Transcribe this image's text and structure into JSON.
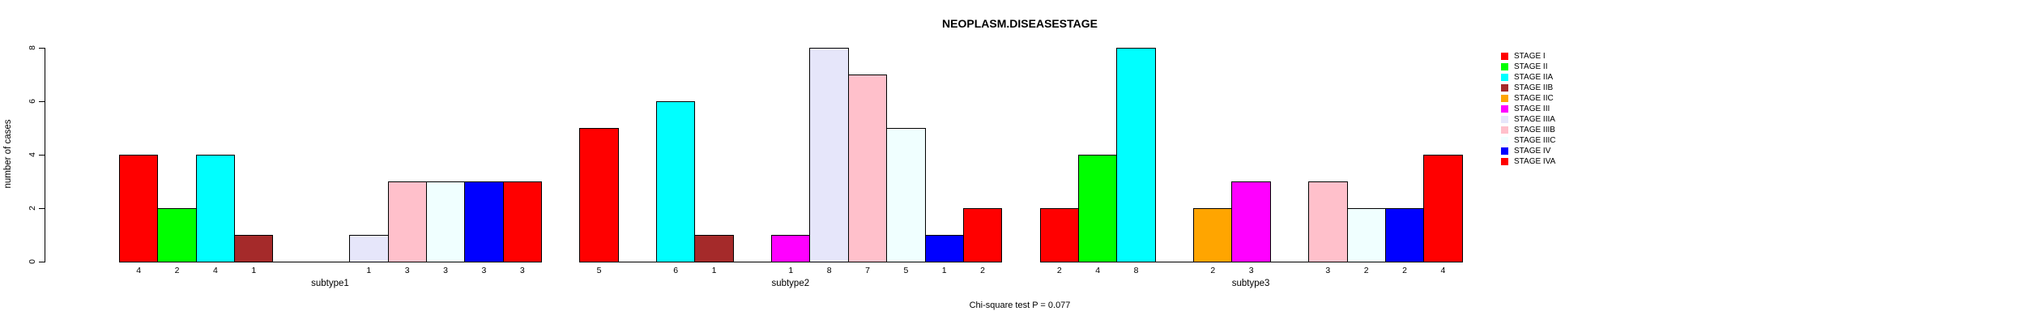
{
  "chart_data": {
    "type": "bar",
    "title": "NEOPLASM.DISEASESTAGE",
    "ylabel": "number of cases",
    "xlabel": "",
    "ylim": [
      0,
      8
    ],
    "yticks": [
      0,
      2,
      4,
      6,
      8
    ],
    "grid": false,
    "legend_position": "right",
    "note": "Chi-square test P = 0.077",
    "stages": [
      {
        "label": "STAGE I",
        "color": "#FF0000"
      },
      {
        "label": "STAGE II",
        "color": "#00FF00"
      },
      {
        "label": "STAGE IIA",
        "color": "#00FFFF"
      },
      {
        "label": "STAGE IIB",
        "color": "#A52A2A"
      },
      {
        "label": "STAGE IIC",
        "color": "#FFA500"
      },
      {
        "label": "STAGE III",
        "color": "#FF00FF"
      },
      {
        "label": "STAGE IIIA",
        "color": "#E6E6FA"
      },
      {
        "label": "STAGE IIIB",
        "color": "#FFC0CB"
      },
      {
        "label": "STAGE IIIC",
        "color": "#F0FFFF"
      },
      {
        "label": "STAGE IV",
        "color": "#0000FF"
      },
      {
        "label": "STAGE IVA",
        "color": "#FF0000"
      }
    ],
    "categories": [
      "subtype1",
      "subtype2",
      "subtype3"
    ],
    "groups": [
      {
        "label": "subtype1",
        "values": [
          4,
          2,
          4,
          1,
          0,
          0,
          1,
          3,
          3,
          3,
          3
        ]
      },
      {
        "label": "subtype2",
        "values": [
          5,
          0,
          6,
          1,
          0,
          1,
          8,
          7,
          5,
          1,
          2
        ]
      },
      {
        "label": "subtype3",
        "values": [
          2,
          4,
          8,
          0,
          2,
          3,
          0,
          3,
          2,
          2,
          4
        ]
      }
    ]
  }
}
